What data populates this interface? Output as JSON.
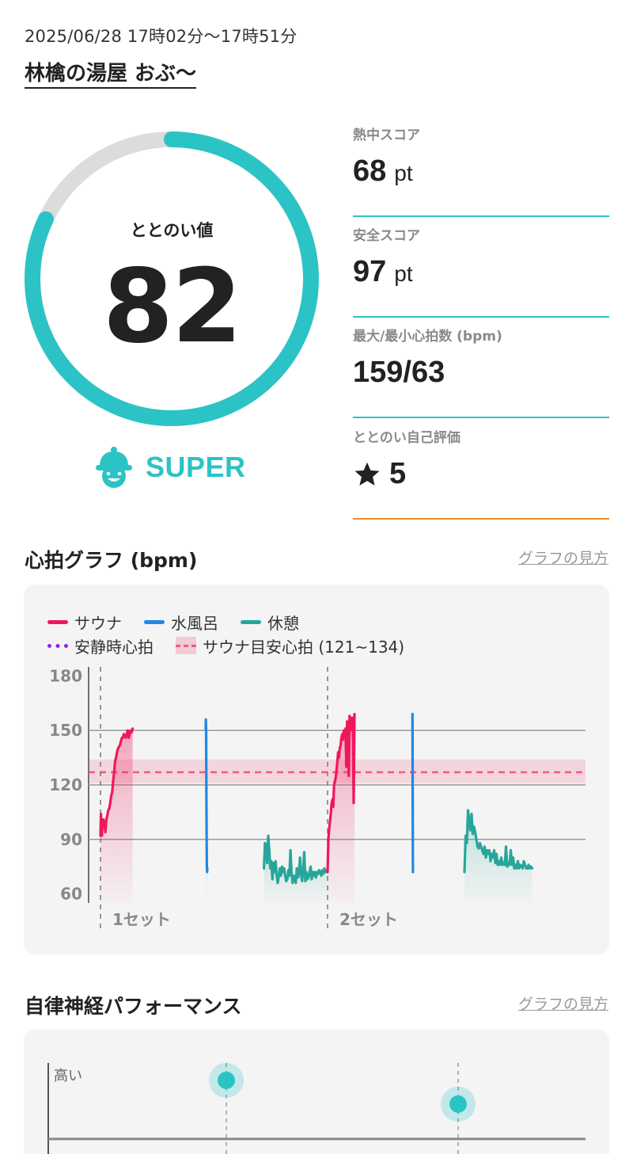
{
  "header": {
    "date_range": "2025/06/28 17時02分〜17時51分",
    "facility": "林檎の湯屋 おぶ〜"
  },
  "gauge": {
    "label": "ととのい値",
    "value": "82",
    "score_fraction": 0.82,
    "colors": {
      "fill": "#2cc3c6",
      "track": "#dcdcdc"
    }
  },
  "rank": {
    "icon": "bell-mascot-icon",
    "label": "SUPER"
  },
  "stats": [
    {
      "label": "熱中スコア",
      "value": "68",
      "unit": "pt"
    },
    {
      "label": "安全スコア",
      "value": "97",
      "unit": "pt"
    },
    {
      "label": "最大/最小心拍数 (bpm)",
      "value": "159/63",
      "unit": ""
    },
    {
      "label": "ととのい自己評価",
      "value": "5",
      "unit": "",
      "icon": "star-icon"
    }
  ],
  "heart_graph": {
    "title": "心拍グラフ (bpm)",
    "help_link": "グラフの見方",
    "legend": {
      "sauna": "サウナ",
      "cold_bath": "水風呂",
      "rest": "休憩",
      "resting_hr": "安静時心拍",
      "target_hr": "サウナ目安心拍 (121~134)"
    },
    "set_labels": [
      "1セット",
      "2セット"
    ]
  },
  "autonomic": {
    "title": "自律神経パフォーマンス",
    "help_link": "グラフの見方",
    "y_label_high": "高い"
  },
  "colors": {
    "accent": "#2cc3c6",
    "sauna": "#f0185a",
    "cold_bath": "#1e88e5",
    "rest": "#26a69a",
    "resting": "#8e24e0",
    "target": "#f05a80",
    "rating_line": "#ee8b2b"
  },
  "chart_data": {
    "type": "line",
    "ylabel": "",
    "yticks": [
      180,
      150,
      120,
      90,
      60
    ],
    "ylim": [
      55,
      185
    ],
    "xlim": [
      0,
      100
    ],
    "target_band": [
      121,
      134
    ],
    "target_line": 127,
    "sets": [
      {
        "label": "1セット",
        "x": 0
      },
      {
        "label": "2セット",
        "x": 46.5
      }
    ],
    "series": [
      {
        "name": "サウナ",
        "segment": "sauna",
        "points": [
          [
            0,
            92
          ],
          [
            0.5,
            104
          ],
          [
            1,
            93
          ],
          [
            1.5,
            92
          ],
          [
            2,
            99
          ],
          [
            3,
            101
          ],
          [
            4,
            99
          ],
          [
            5,
            94
          ],
          [
            6,
            101
          ],
          [
            7,
            103
          ],
          [
            8,
            106
          ],
          [
            9,
            107
          ],
          [
            10,
            110
          ],
          [
            11,
            114
          ],
          [
            12,
            116
          ],
          [
            13,
            122
          ],
          [
            14,
            127
          ],
          [
            15,
            133
          ],
          [
            16,
            135
          ],
          [
            17,
            138
          ],
          [
            18,
            140
          ],
          [
            19,
            141
          ],
          [
            20,
            142
          ],
          [
            21,
            144
          ],
          [
            22,
            146
          ],
          [
            23,
            146
          ],
          [
            24,
            148
          ],
          [
            25,
            147
          ],
          [
            26,
            146
          ],
          [
            27,
            148
          ],
          [
            28,
            150
          ],
          [
            29,
            146
          ],
          [
            30,
            148
          ],
          [
            31,
            150
          ],
          [
            32,
            149
          ],
          [
            33,
            151
          ]
        ]
      },
      {
        "name": "水風呂",
        "segment": "cold1",
        "points": [
          [
            33,
            151
          ],
          [
            34,
            156
          ],
          [
            35,
            150
          ],
          [
            36,
            120
          ],
          [
            37,
            95
          ],
          [
            38,
            76
          ],
          [
            39,
            72
          ],
          [
            40,
            74
          ]
        ]
      },
      {
        "name": "休憩",
        "segment": "rest1",
        "points": [
          [
            40,
            74
          ],
          [
            41,
            88
          ],
          [
            42,
            86
          ],
          [
            43,
            77
          ],
          [
            44,
            92
          ],
          [
            45,
            84
          ],
          [
            46,
            74
          ],
          [
            47,
            78
          ],
          [
            48,
            68
          ],
          [
            49,
            77
          ],
          [
            50,
            72
          ],
          [
            51,
            78
          ],
          [
            52,
            70
          ],
          [
            53,
            66
          ],
          [
            54,
            70
          ],
          [
            55,
            74
          ],
          [
            56,
            70
          ],
          [
            57,
            75
          ],
          [
            58,
            72
          ],
          [
            59,
            74
          ],
          [
            60,
            70
          ],
          [
            61,
            67
          ],
          [
            62,
            68
          ],
          [
            63,
            73
          ],
          [
            64,
            70
          ],
          [
            65,
            84
          ],
          [
            66,
            72
          ],
          [
            67,
            66
          ],
          [
            68,
            70
          ],
          [
            69,
            69
          ],
          [
            70,
            66
          ],
          [
            71,
            74
          ],
          [
            72,
            69
          ],
          [
            73,
            72
          ],
          [
            74,
            80
          ],
          [
            75,
            70
          ],
          [
            76,
            67
          ],
          [
            77,
            74
          ],
          [
            78,
            83
          ],
          [
            79,
            67
          ],
          [
            80,
            72
          ],
          [
            81,
            68
          ],
          [
            82,
            69
          ],
          [
            83,
            72
          ],
          [
            84,
            75
          ],
          [
            85,
            68
          ],
          [
            86,
            72
          ],
          [
            87,
            70
          ],
          [
            88,
            72
          ],
          [
            89,
            69
          ],
          [
            90,
            72
          ],
          [
            91,
            71
          ],
          [
            92,
            73
          ],
          [
            93,
            72
          ],
          [
            94,
            70
          ],
          [
            95,
            73
          ],
          [
            96,
            71
          ],
          [
            97,
            74
          ],
          [
            98,
            72
          ],
          [
            99,
            73
          ],
          [
            100,
            72
          ]
        ]
      },
      {
        "name": "サウナ",
        "segment": "sauna2",
        "points": [
          [
            0,
            72
          ],
          [
            1,
            90
          ],
          [
            2,
            96
          ],
          [
            3,
            100
          ],
          [
            4,
            104
          ],
          [
            5,
            110
          ],
          [
            6,
            112
          ],
          [
            7,
            108
          ],
          [
            8,
            120
          ],
          [
            9,
            122
          ],
          [
            10,
            124
          ],
          [
            11,
            128
          ],
          [
            12,
            133
          ],
          [
            13,
            138
          ],
          [
            14,
            135
          ],
          [
            15,
            140
          ],
          [
            16,
            142
          ],
          [
            17,
            146
          ],
          [
            18,
            148
          ],
          [
            19,
            145
          ],
          [
            20,
            150
          ],
          [
            21,
            146
          ],
          [
            22,
            151
          ],
          [
            23,
            130
          ],
          [
            24,
            155
          ],
          [
            25,
            152
          ],
          [
            26,
            125
          ],
          [
            27,
            158
          ],
          [
            28,
            150
          ],
          [
            29,
            153
          ],
          [
            30,
            157
          ],
          [
            31,
            157
          ],
          [
            32,
            110
          ],
          [
            33,
            159
          ]
        ]
      },
      {
        "name": "水風呂",
        "segment": "cold2",
        "points": [
          [
            33,
            159
          ],
          [
            34,
            145
          ],
          [
            35,
            110
          ],
          [
            36,
            95
          ],
          [
            37,
            80
          ],
          [
            38,
            72
          ]
        ]
      },
      {
        "name": "休憩",
        "segment": "rest2",
        "points": [
          [
            38,
            72
          ],
          [
            39,
            92
          ],
          [
            40,
            88
          ],
          [
            41,
            106
          ],
          [
            42,
            100
          ],
          [
            43,
            95
          ],
          [
            44,
            104
          ],
          [
            45,
            93
          ],
          [
            46,
            97
          ],
          [
            47,
            94
          ],
          [
            48,
            90
          ],
          [
            49,
            86
          ],
          [
            50,
            85
          ],
          [
            51,
            88
          ],
          [
            52,
            86
          ],
          [
            53,
            84
          ],
          [
            54,
            82
          ],
          [
            55,
            86
          ],
          [
            56,
            80
          ],
          [
            57,
            84
          ],
          [
            58,
            82
          ],
          [
            59,
            84
          ],
          [
            60,
            78
          ],
          [
            61,
            82
          ],
          [
            62,
            80
          ],
          [
            63,
            84
          ],
          [
            64,
            77
          ],
          [
            65,
            82
          ],
          [
            66,
            76
          ],
          [
            67,
            78
          ],
          [
            68,
            76
          ],
          [
            69,
            80
          ],
          [
            70,
            76
          ],
          [
            71,
            77
          ],
          [
            72,
            76
          ],
          [
            73,
            86
          ],
          [
            74,
            75
          ],
          [
            75,
            77
          ],
          [
            76,
            76
          ],
          [
            77,
            84
          ],
          [
            78,
            76
          ],
          [
            79,
            80
          ],
          [
            80,
            74
          ],
          [
            81,
            76
          ],
          [
            82,
            74
          ],
          [
            83,
            78
          ],
          [
            84,
            74
          ],
          [
            85,
            76
          ],
          [
            86,
            75
          ],
          [
            87,
            74
          ],
          [
            88,
            78
          ],
          [
            89,
            76
          ],
          [
            90,
            74
          ],
          [
            91,
            74
          ],
          [
            92,
            76
          ],
          [
            93,
            74
          ],
          [
            94,
            75
          ],
          [
            95,
            74
          ]
        ]
      }
    ]
  }
}
